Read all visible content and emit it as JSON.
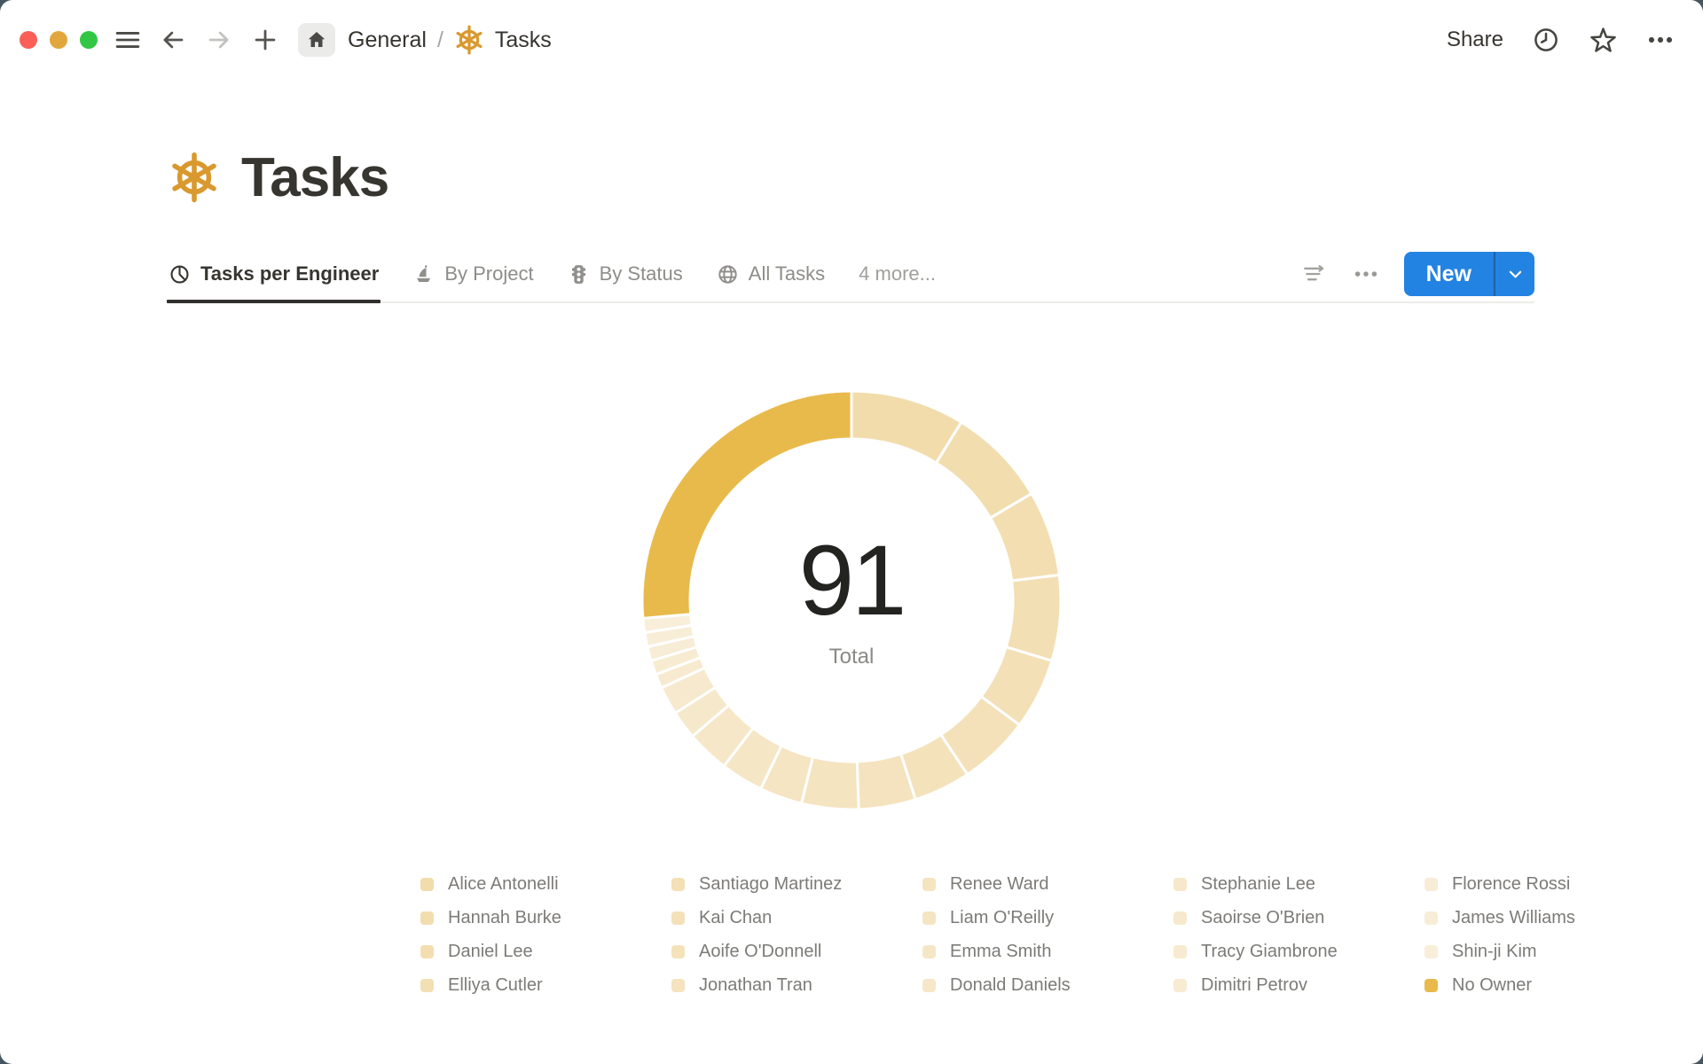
{
  "topbar": {
    "traffic_lights": {
      "close": "#FB5F57",
      "minimize": "#E2A73C",
      "zoom": "#31C745"
    },
    "breadcrumb": {
      "root": "General",
      "separator": "/",
      "current": "Tasks"
    },
    "share_label": "Share",
    "icons": [
      "menu-icon",
      "back-arrow-icon",
      "forward-arrow-icon",
      "plus-icon",
      "home-icon",
      "clock-icon",
      "star-icon",
      "more-icon"
    ]
  },
  "page": {
    "icon": "ship-helm-icon",
    "icon_color": "#D9992E",
    "title": "Tasks",
    "tabs": [
      {
        "label": "Tasks per Engineer",
        "icon": "pie-chart-icon",
        "active": true
      },
      {
        "label": "By Project",
        "icon": "sailboat-icon",
        "active": false
      },
      {
        "label": "By Status",
        "icon": "traffic-light-icon",
        "active": false
      },
      {
        "label": "All Tasks",
        "icon": "globe-icon",
        "active": false
      },
      {
        "label": "4 more...",
        "icon": "",
        "active": false
      }
    ],
    "toolbar": {
      "new_label": "New",
      "accent_color": "#2383E2",
      "icons": [
        "filter-sort-icon",
        "view-options-icon",
        "chevron-down-icon"
      ]
    }
  },
  "chart_data": {
    "type": "pie",
    "donut": true,
    "title": "Tasks per Engineer",
    "center_value": "91",
    "center_label": "Total",
    "total": 91,
    "legend_position": "bottom",
    "legend_columns": 5,
    "slice_gap_color": "#FFFFFF",
    "series": [
      {
        "name": "Alice Antonelli",
        "value": 8,
        "color": "#F2DCAC"
      },
      {
        "name": "Hannah Burke",
        "value": 7,
        "color": "#F2DDAF"
      },
      {
        "name": "Daniel Lee",
        "value": 6,
        "color": "#F3DEB1"
      },
      {
        "name": "Elliya Cutler",
        "value": 6,
        "color": "#F3DFB4"
      },
      {
        "name": "Santiago Martinez",
        "value": 5,
        "color": "#F3E0B6"
      },
      {
        "name": "Kai Chan",
        "value": 5,
        "color": "#F4E1B9"
      },
      {
        "name": "Aoife O'Donnell",
        "value": 4,
        "color": "#F4E2BB"
      },
      {
        "name": "Jonathan Tran",
        "value": 4,
        "color": "#F4E3BE"
      },
      {
        "name": "Renee Ward",
        "value": 4,
        "color": "#F5E4C0"
      },
      {
        "name": "Liam O'Reilly",
        "value": 3,
        "color": "#F5E5C3"
      },
      {
        "name": "Emma Smith",
        "value": 3,
        "color": "#F5E6C6"
      },
      {
        "name": "Donald Daniels",
        "value": 3,
        "color": "#F6E7C8"
      },
      {
        "name": "Stephanie Lee",
        "value": 2,
        "color": "#F6E8CB"
      },
      {
        "name": "Saoirse O'Brien",
        "value": 2,
        "color": "#F6E9CD"
      },
      {
        "name": "Tracy Giambrone",
        "value": 1,
        "color": "#F7EAD0"
      },
      {
        "name": "Dimitri Petrov",
        "value": 1,
        "color": "#F7EBD2"
      },
      {
        "name": "Florence Rossi",
        "value": 1,
        "color": "#F7ECD5"
      },
      {
        "name": "James Williams",
        "value": 1,
        "color": "#F8EDD7"
      },
      {
        "name": "Shin-ji Kim",
        "value": 1,
        "color": "#F8EEDA"
      },
      {
        "name": "No Owner",
        "value": 24,
        "color": "#E8BA4B"
      }
    ]
  }
}
